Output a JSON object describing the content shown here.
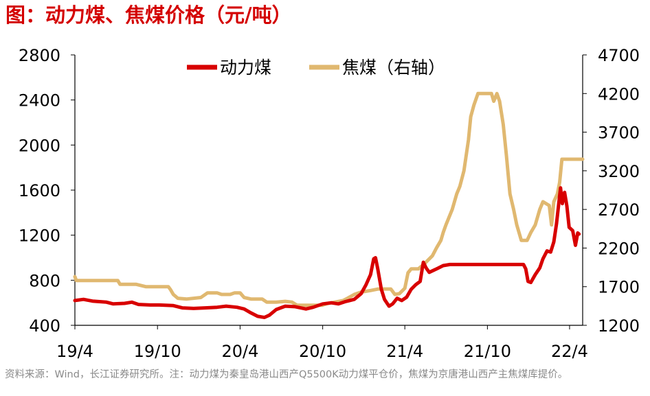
{
  "title": "图：动力煤、焦煤价格（元/吨）",
  "source": "资料来源：Wind，长江证券研究所。注：动力煤为秦皇岛港山西产Q5500K动力煤平仓价，焦煤为京唐港山西产主焦煤库提价。",
  "chart_data": {
    "type": "line",
    "x_ticks": [
      "19/4",
      "19/10",
      "20/4",
      "20/10",
      "21/4",
      "21/10",
      "22/4"
    ],
    "x_range": [
      "2019-04-01",
      "2022-04-30"
    ],
    "left_axis": {
      "ticks": [
        400,
        800,
        1200,
        1600,
        2000,
        2400,
        2800
      ],
      "range": [
        400,
        2800
      ]
    },
    "right_axis": {
      "ticks": [
        1200,
        1700,
        2200,
        2700,
        3200,
        3700,
        4200,
        4700
      ],
      "range": [
        1200,
        4700
      ]
    },
    "grid": false,
    "legend_position": "top",
    "series": [
      {
        "name": "动力煤",
        "axis": "left",
        "color": "#d80000",
        "points": [
          [
            "2019-04-01",
            620
          ],
          [
            "2019-04-20",
            630
          ],
          [
            "2019-05-10",
            615
          ],
          [
            "2019-06-10",
            605
          ],
          [
            "2019-06-25",
            590
          ],
          [
            "2019-07-20",
            595
          ],
          [
            "2019-08-05",
            605
          ],
          [
            "2019-08-20",
            585
          ],
          [
            "2019-09-15",
            580
          ],
          [
            "2019-10-05",
            580
          ],
          [
            "2019-11-05",
            575
          ],
          [
            "2019-11-25",
            555
          ],
          [
            "2019-12-20",
            550
          ],
          [
            "2020-01-15",
            555
          ],
          [
            "2020-02-10",
            560
          ],
          [
            "2020-03-01",
            570
          ],
          [
            "2020-03-25",
            560
          ],
          [
            "2020-04-10",
            545
          ],
          [
            "2020-04-25",
            510
          ],
          [
            "2020-05-10",
            480
          ],
          [
            "2020-05-25",
            470
          ],
          [
            "2020-06-05",
            490
          ],
          [
            "2020-06-20",
            540
          ],
          [
            "2020-07-10",
            570
          ],
          [
            "2020-08-01",
            565
          ],
          [
            "2020-08-25",
            545
          ],
          [
            "2020-09-10",
            560
          ],
          [
            "2020-10-01",
            590
          ],
          [
            "2020-10-20",
            600
          ],
          [
            "2020-11-05",
            590
          ],
          [
            "2020-11-20",
            610
          ],
          [
            "2020-12-10",
            630
          ],
          [
            "2020-12-25",
            680
          ],
          [
            "2021-01-05",
            760
          ],
          [
            "2021-01-15",
            850
          ],
          [
            "2021-01-22",
            990
          ],
          [
            "2021-01-26",
            1000
          ],
          [
            "2021-01-31",
            900
          ],
          [
            "2021-02-08",
            720
          ],
          [
            "2021-02-15",
            630
          ],
          [
            "2021-02-25",
            570
          ],
          [
            "2021-03-05",
            590
          ],
          [
            "2021-03-15",
            640
          ],
          [
            "2021-03-25",
            620
          ],
          [
            "2021-04-05",
            650
          ],
          [
            "2021-04-15",
            720
          ],
          [
            "2021-04-25",
            760
          ],
          [
            "2021-05-05",
            790
          ],
          [
            "2021-05-12",
            960
          ],
          [
            "2021-05-18",
            910
          ],
          [
            "2021-05-25",
            870
          ],
          [
            "2021-06-10",
            900
          ],
          [
            "2021-06-25",
            930
          ],
          [
            "2021-07-10",
            940
          ],
          [
            "2021-12-20",
            940
          ],
          [
            "2021-12-25",
            900
          ],
          [
            "2021-12-30",
            790
          ],
          [
            "2022-01-05",
            780
          ],
          [
            "2022-01-15",
            850
          ],
          [
            "2022-01-25",
            910
          ],
          [
            "2022-02-01",
            990
          ],
          [
            "2022-02-10",
            1060
          ],
          [
            "2022-02-18",
            1050
          ],
          [
            "2022-02-25",
            1140
          ],
          [
            "2022-03-03",
            1300
          ],
          [
            "2022-03-08",
            1480
          ],
          [
            "2022-03-12",
            1620
          ],
          [
            "2022-03-16",
            1480
          ],
          [
            "2022-03-21",
            1580
          ],
          [
            "2022-03-26",
            1460
          ],
          [
            "2022-03-31",
            1270
          ],
          [
            "2022-04-08",
            1240
          ],
          [
            "2022-04-14",
            1110
          ],
          [
            "2022-04-19",
            1220
          ],
          [
            "2022-04-22",
            1210
          ]
        ]
      },
      {
        "name": "焦煤（右轴）",
        "axis": "right",
        "color": "#e0b870",
        "points": [
          [
            "2019-04-01",
            1830
          ],
          [
            "2019-04-04",
            1780
          ],
          [
            "2019-05-15",
            1780
          ],
          [
            "2019-07-05",
            1780
          ],
          [
            "2019-07-10",
            1730
          ],
          [
            "2019-08-15",
            1730
          ],
          [
            "2019-09-05",
            1700
          ],
          [
            "2019-10-25",
            1700
          ],
          [
            "2019-10-30",
            1660
          ],
          [
            "2019-11-05",
            1600
          ],
          [
            "2019-11-15",
            1550
          ],
          [
            "2019-12-05",
            1540
          ],
          [
            "2020-01-05",
            1560
          ],
          [
            "2020-01-20",
            1620
          ],
          [
            "2020-02-10",
            1620
          ],
          [
            "2020-02-20",
            1600
          ],
          [
            "2020-03-10",
            1600
          ],
          [
            "2020-03-20",
            1620
          ],
          [
            "2020-04-01",
            1620
          ],
          [
            "2020-04-10",
            1560
          ],
          [
            "2020-04-25",
            1540
          ],
          [
            "2020-05-20",
            1540
          ],
          [
            "2020-05-30",
            1500
          ],
          [
            "2020-06-20",
            1500
          ],
          [
            "2020-07-10",
            1510
          ],
          [
            "2020-07-25",
            1500
          ],
          [
            "2020-08-05",
            1460
          ],
          [
            "2020-09-30",
            1460
          ],
          [
            "2020-10-10",
            1480
          ],
          [
            "2020-11-15",
            1520
          ],
          [
            "2020-11-25",
            1550
          ],
          [
            "2020-12-10",
            1600
          ],
          [
            "2020-12-25",
            1630
          ],
          [
            "2021-01-15",
            1650
          ],
          [
            "2021-02-01",
            1670
          ],
          [
            "2021-03-01",
            1670
          ],
          [
            "2021-03-10",
            1600
          ],
          [
            "2021-03-20",
            1610
          ],
          [
            "2021-04-01",
            1680
          ],
          [
            "2021-04-08",
            1880
          ],
          [
            "2021-04-15",
            1930
          ],
          [
            "2021-05-01",
            1930
          ],
          [
            "2021-05-15",
            2000
          ],
          [
            "2021-06-01",
            2100
          ],
          [
            "2021-06-10",
            2200
          ],
          [
            "2021-06-20",
            2300
          ],
          [
            "2021-06-25",
            2400
          ],
          [
            "2021-07-01",
            2500
          ],
          [
            "2021-07-15",
            2700
          ],
          [
            "2021-07-25",
            2900
          ],
          [
            "2021-08-01",
            3000
          ],
          [
            "2021-08-10",
            3200
          ],
          [
            "2021-08-20",
            3600
          ],
          [
            "2021-08-25",
            3900
          ],
          [
            "2021-09-01",
            4050
          ],
          [
            "2021-09-10",
            4200
          ],
          [
            "2021-10-10",
            4200
          ],
          [
            "2021-10-15",
            4100
          ],
          [
            "2021-10-22",
            4200
          ],
          [
            "2021-10-28",
            4100
          ],
          [
            "2021-11-05",
            3800
          ],
          [
            "2021-11-12",
            3400
          ],
          [
            "2021-11-20",
            2900
          ],
          [
            "2021-11-28",
            2700
          ],
          [
            "2021-12-05",
            2500
          ],
          [
            "2021-12-15",
            2300
          ],
          [
            "2021-12-28",
            2300
          ],
          [
            "2022-01-05",
            2400
          ],
          [
            "2022-01-15",
            2500
          ],
          [
            "2022-01-25",
            2700
          ],
          [
            "2022-02-01",
            2800
          ],
          [
            "2022-02-15",
            2750
          ],
          [
            "2022-02-20",
            2500
          ],
          [
            "2022-02-25",
            2800
          ],
          [
            "2022-03-05",
            2900
          ],
          [
            "2022-03-10",
            3050
          ],
          [
            "2022-03-15",
            3350
          ],
          [
            "2022-04-30",
            3350
          ]
        ]
      }
    ]
  }
}
